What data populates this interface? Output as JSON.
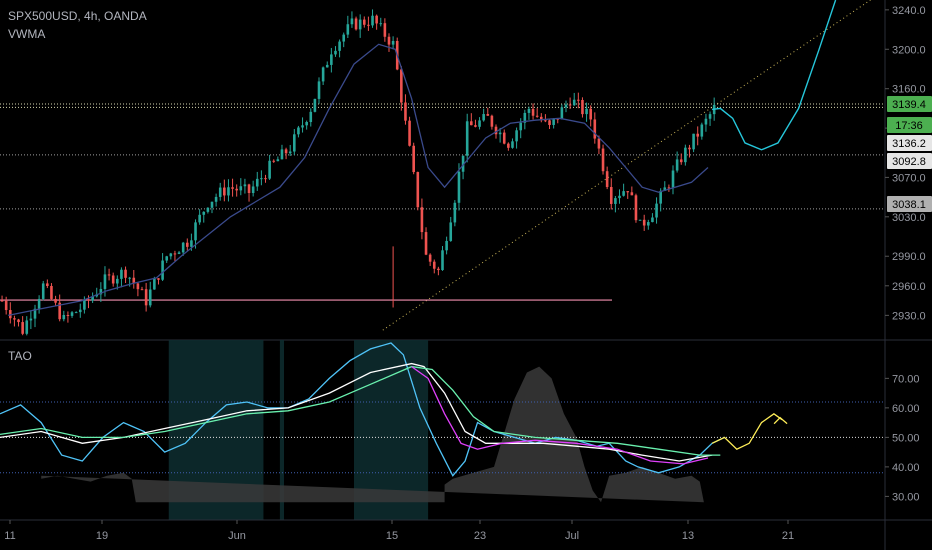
{
  "header": {
    "symbol_line": "SPX500USD, 4h, OANDA",
    "indicator": "VWMA"
  },
  "oscillator": {
    "label": "TAO"
  },
  "colors": {
    "background": "#000000",
    "bull": "#26a69a",
    "bear": "#ef5350",
    "vwma": "#3a4a8c",
    "projection": "#26c6da",
    "support": "#f48fb1",
    "price_badge": "#4caf50",
    "grey_badge": "#b0b0b0",
    "osc_cyan": "#4fc3f7",
    "osc_white": "#ffffff",
    "osc_green": "#69f0ae",
    "osc_magenta": "#e040fb",
    "osc_yellow": "#ffee58"
  },
  "chart_data": [
    {
      "type": "candlestick",
      "ylim": [
        2905,
        3250
      ],
      "yticks": [
        "3240.0",
        "3200.0",
        "3160.0",
        "3120.0",
        "3070.0",
        "3030.0",
        "2990.0",
        "2960.0",
        "2930.0"
      ],
      "xticks": [
        "11",
        "19",
        "Jun",
        "15",
        "23",
        "Jul",
        "13",
        "21"
      ],
      "price_labels": [
        {
          "text": "3139.4",
          "kind": "current"
        },
        {
          "text": "17:36",
          "kind": "countdown"
        },
        {
          "text": "3136.2",
          "kind": "level"
        },
        {
          "text": "3092.8",
          "kind": "level"
        },
        {
          "text": "3038.1",
          "kind": "level"
        }
      ],
      "levels": [
        3144.5,
        3141,
        3092.8,
        3038.1
      ],
      "support_line": 2945.5,
      "path": [
        [
          0,
          2945
        ],
        [
          5,
          2915
        ],
        [
          10,
          2960
        ],
        [
          15,
          2925
        ],
        [
          20,
          2940
        ],
        [
          25,
          2965
        ],
        [
          30,
          2975
        ],
        [
          35,
          2945
        ],
        [
          40,
          2990
        ],
        [
          45,
          3005
        ],
        [
          50,
          3045
        ],
        [
          55,
          3060
        ],
        [
          60,
          3055
        ],
        [
          65,
          3080
        ],
        [
          70,
          3100
        ],
        [
          75,
          3140
        ],
        [
          80,
          3200
        ],
        [
          85,
          3225
        ],
        [
          90,
          3230
        ],
        [
          95,
          3205
        ],
        [
          100,
          3070
        ],
        [
          103,
          2990
        ],
        [
          106,
          2975
        ],
        [
          110,
          3050
        ],
        [
          113,
          3120
        ],
        [
          118,
          3130
        ],
        [
          123,
          3105
        ],
        [
          128,
          3140
        ],
        [
          133,
          3120
        ],
        [
          138,
          3150
        ],
        [
          143,
          3130
        ],
        [
          148,
          3050
        ],
        [
          152,
          3060
        ],
        [
          155,
          3020
        ],
        [
          158,
          3035
        ],
        [
          162,
          3065
        ],
        [
          165,
          3090
        ],
        [
          170,
          3120
        ],
        [
          173,
          3140
        ]
      ],
      "vwma": [
        [
          2,
          2930
        ],
        [
          8,
          2935
        ],
        [
          14,
          2940
        ],
        [
          20,
          2945
        ],
        [
          26,
          2955
        ],
        [
          32,
          2962
        ],
        [
          38,
          2968
        ],
        [
          44,
          2990
        ],
        [
          50,
          3010
        ],
        [
          56,
          3030
        ],
        [
          62,
          3045
        ],
        [
          68,
          3060
        ],
        [
          74,
          3090
        ],
        [
          80,
          3140
        ],
        [
          86,
          3185
        ],
        [
          92,
          3205
        ],
        [
          96,
          3200
        ],
        [
          100,
          3150
        ],
        [
          104,
          3080
        ],
        [
          108,
          3060
        ],
        [
          112,
          3080
        ],
        [
          118,
          3110
        ],
        [
          124,
          3125
        ],
        [
          130,
          3128
        ],
        [
          136,
          3130
        ],
        [
          142,
          3125
        ],
        [
          148,
          3100
        ],
        [
          152,
          3080
        ],
        [
          156,
          3060
        ],
        [
          160,
          3055
        ],
        [
          164,
          3060
        ],
        [
          168,
          3065
        ],
        [
          172,
          3080
        ]
      ],
      "projection": [
        [
          173,
          3139
        ],
        [
          175,
          3140
        ],
        [
          178,
          3130
        ],
        [
          181,
          3105
        ],
        [
          185,
          3098
        ],
        [
          189,
          3105
        ],
        [
          194,
          3140
        ],
        [
          199,
          3200
        ],
        [
          203,
          3250
        ]
      ],
      "trend_line": [
        [
          93,
          2915
        ],
        [
          215,
          3260
        ]
      ]
    },
    {
      "type": "line",
      "ylim": [
        22,
        83
      ],
      "yticks": [
        "70.00",
        "60.00",
        "50.00",
        "40.00",
        "30.00"
      ],
      "levels": [
        62,
        50,
        38
      ],
      "shaded_columns": [
        [
          41,
          64
        ],
        [
          68,
          69
        ],
        [
          86,
          104
        ]
      ],
      "area": [
        [
          10,
          37
        ],
        [
          10,
          36
        ],
        [
          14,
          37
        ],
        [
          18,
          36
        ],
        [
          22,
          35
        ],
        [
          26,
          37
        ],
        [
          30,
          38
        ],
        [
          32,
          36
        ],
        [
          33,
          28
        ],
        [
          108,
          28
        ],
        [
          108,
          34
        ],
        [
          110,
          36
        ],
        [
          115,
          38
        ],
        [
          120,
          40
        ],
        [
          125,
          63
        ],
        [
          128,
          72
        ],
        [
          131,
          74
        ],
        [
          134,
          70
        ],
        [
          137,
          58
        ],
        [
          140,
          50
        ],
        [
          142,
          40
        ],
        [
          144,
          32
        ],
        [
          146,
          28
        ],
        [
          148,
          37
        ],
        [
          152,
          38
        ],
        [
          156,
          40
        ],
        [
          160,
          38
        ],
        [
          164,
          36
        ],
        [
          168,
          37
        ],
        [
          170,
          35
        ],
        [
          171,
          28
        ]
      ],
      "series": [
        {
          "color": "cyan",
          "values": [
            [
              0,
              58
            ],
            [
              5,
              61
            ],
            [
              10,
              55
            ],
            [
              15,
              44
            ],
            [
              20,
              42
            ],
            [
              25,
              50
            ],
            [
              30,
              55
            ],
            [
              35,
              52
            ],
            [
              40,
              45
            ],
            [
              45,
              48
            ],
            [
              50,
              55
            ],
            [
              55,
              61
            ],
            [
              60,
              62
            ],
            [
              65,
              60
            ],
            [
              70,
              60
            ],
            [
              75,
              63
            ],
            [
              80,
              70
            ],
            [
              85,
              76
            ],
            [
              90,
              80
            ],
            [
              95,
              82
            ],
            [
              98,
              78
            ],
            [
              102,
              60
            ],
            [
              106,
              48
            ],
            [
              110,
              37
            ],
            [
              113,
              42
            ],
            [
              116,
              55
            ],
            [
              120,
              52
            ],
            [
              125,
              50
            ],
            [
              130,
              48
            ],
            [
              135,
              50
            ],
            [
              140,
              49
            ],
            [
              145,
              47
            ],
            [
              148,
              48
            ],
            [
              152,
              42
            ],
            [
              155,
              40
            ],
            [
              160,
              38
            ],
            [
              165,
              40
            ],
            [
              170,
              44
            ],
            [
              173,
              48
            ],
            [
              176,
              50
            ]
          ]
        },
        {
          "color": "white",
          "values": [
            [
              0,
              50
            ],
            [
              10,
              52
            ],
            [
              20,
              48
            ],
            [
              30,
              50
            ],
            [
              40,
              53
            ],
            [
              50,
              56
            ],
            [
              60,
              59
            ],
            [
              70,
              60
            ],
            [
              80,
              65
            ],
            [
              90,
              72
            ],
            [
              100,
              75
            ],
            [
              103,
              74
            ],
            [
              108,
              65
            ],
            [
              113,
              52
            ],
            [
              118,
              48
            ],
            [
              125,
              48
            ],
            [
              132,
              48
            ],
            [
              140,
              47
            ],
            [
              148,
              46
            ],
            [
              156,
              44
            ],
            [
              165,
              42
            ],
            [
              173,
              44
            ]
          ]
        },
        {
          "color": "green",
          "values": [
            [
              0,
              51
            ],
            [
              10,
              53
            ],
            [
              20,
              50
            ],
            [
              30,
              50
            ],
            [
              40,
              52
            ],
            [
              50,
              55
            ],
            [
              60,
              58
            ],
            [
              70,
              59
            ],
            [
              80,
              62
            ],
            [
              90,
              68
            ],
            [
              100,
              74
            ],
            [
              105,
              73
            ],
            [
              110,
              66
            ],
            [
              115,
              57
            ],
            [
              120,
              52
            ],
            [
              130,
              50
            ],
            [
              140,
              49
            ],
            [
              150,
              48
            ],
            [
              160,
              46
            ],
            [
              170,
              44
            ],
            [
              175,
              44
            ]
          ]
        },
        {
          "color": "magenta",
          "values": [
            [
              100,
              74
            ],
            [
              104,
              70
            ],
            [
              108,
              58
            ],
            [
              112,
              48
            ],
            [
              116,
              46
            ],
            [
              122,
              48
            ],
            [
              130,
              49
            ],
            [
              140,
              48
            ],
            [
              150,
              46
            ],
            [
              158,
              42
            ],
            [
              166,
              41
            ],
            [
              172,
              43
            ]
          ]
        },
        {
          "color": "yellow",
          "values": [
            [
              173,
              48
            ],
            [
              176,
              50
            ],
            [
              179,
              46
            ],
            [
              182,
              48
            ],
            [
              185,
              55
            ],
            [
              188,
              58
            ],
            [
              190,
              56
            ]
          ]
        }
      ]
    }
  ]
}
